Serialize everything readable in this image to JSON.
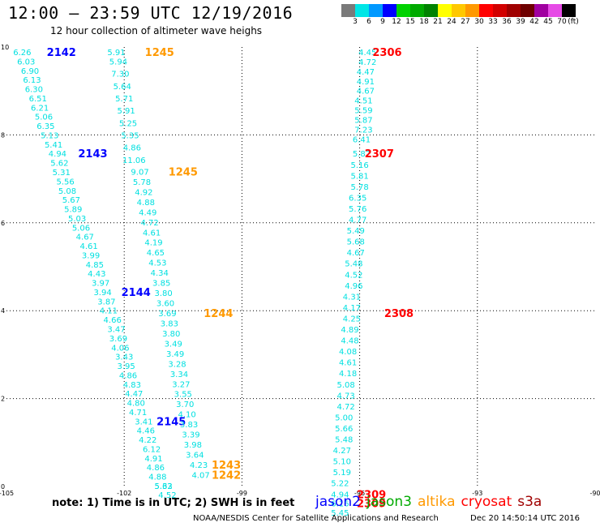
{
  "header": {
    "title": "12:00 – 23:59 UTC 12/19/2016",
    "subtitle": "12 hour collection of altimeter wave heighs"
  },
  "colorbar": {
    "unit_label": "(ft)",
    "colors": [
      "#7a7a7a",
      "#00e6e6",
      "#0099ff",
      "#0000ff",
      "#00d200",
      "#00aa00",
      "#008200",
      "#ffff00",
      "#ffc800",
      "#ff9900",
      "#ff0000",
      "#d20000",
      "#a00000",
      "#6e0000",
      "#a000a0",
      "#e64be6",
      "#000000"
    ],
    "labels": [
      "3",
      "6",
      "9",
      "12",
      "15",
      "18",
      "21",
      "24",
      "27",
      "30",
      "33",
      "36",
      "39",
      "42",
      "45",
      "70"
    ]
  },
  "chart_data": {
    "type": "scatter",
    "title": "12 hour collection of altimeter wave heighs",
    "xlim": [
      -105,
      -90
    ],
    "ylim": [
      0,
      10
    ],
    "x_ticks": [
      "-105",
      "-102",
      "-99",
      "-96",
      "-93",
      "-90"
    ],
    "y_ticks": [
      "0",
      "2",
      "4",
      "6",
      "8",
      "10"
    ],
    "grid": true,
    "colors": {
      "jason2": "#0000ff",
      "jason3": "#00aa00",
      "altika": "#ff9900",
      "cryosat": "#ff0000",
      "s3a": "#a00000",
      "swh": "#00e0e0"
    },
    "passes": [
      {
        "mission": "jason2",
        "label": "2142",
        "label_lon": -103.6,
        "label_lat": 9.87,
        "points": [
          [
            "6.26",
            -104.6,
            9.87
          ],
          [
            "6.03",
            -104.5,
            9.66
          ],
          [
            "6.90",
            -104.4,
            9.45
          ],
          [
            "6.13",
            -104.35,
            9.24
          ],
          [
            "6.30",
            -104.3,
            9.03
          ],
          [
            "6.51",
            -104.2,
            8.82
          ],
          [
            "6.21",
            -104.15,
            8.61
          ],
          [
            "5.06",
            -104.05,
            8.4
          ],
          [
            "6.35",
            -104.0,
            8.19
          ],
          [
            "5.13",
            -103.9,
            7.98
          ],
          [
            "5.41",
            -103.8,
            7.77
          ]
        ]
      },
      {
        "mission": "jason2",
        "label": "2143",
        "label_lon": -102.8,
        "label_lat": 7.56,
        "points": [
          [
            "4.94",
            -103.7,
            7.56
          ],
          [
            "5.62",
            -103.65,
            7.35
          ],
          [
            "5.31",
            -103.6,
            7.14
          ],
          [
            "5.56",
            -103.5,
            6.93
          ],
          [
            "5.08",
            -103.45,
            6.72
          ],
          [
            "5.67",
            -103.35,
            6.51
          ],
          [
            "5.89",
            -103.3,
            6.3
          ],
          [
            "5.03",
            -103.2,
            6.09
          ],
          [
            "5.06",
            -103.1,
            5.88
          ],
          [
            "4.67",
            -103.0,
            5.67
          ],
          [
            "4.61",
            -102.9,
            5.46
          ],
          [
            "3.99",
            -102.85,
            5.25
          ],
          [
            "4.85",
            -102.75,
            5.04
          ],
          [
            "4.43",
            -102.7,
            4.83
          ],
          [
            "3.97",
            -102.6,
            4.62
          ],
          [
            "3.94",
            -102.55,
            4.41
          ],
          [
            "3.87",
            -102.45,
            4.2
          ],
          [
            "4.11",
            -102.4,
            3.99
          ],
          [
            "4.66",
            -102.3,
            3.78
          ],
          [
            "3.47",
            -102.2,
            3.57
          ],
          [
            "3.69",
            -102.15,
            3.36
          ],
          [
            "4.06",
            -102.1,
            3.15
          ],
          [
            "3.43",
            -102.0,
            2.94
          ],
          [
            "3.95",
            -101.95,
            2.73
          ],
          [
            "4.86",
            -101.9,
            2.52
          ],
          [
            "4.83",
            -101.8,
            2.31
          ],
          [
            "4.47",
            -101.75,
            2.1
          ],
          [
            "4.80",
            -101.7,
            1.89
          ],
          [
            "4.71",
            -101.65,
            1.68
          ]
        ]
      },
      {
        "mission": "jason2",
        "label": "2144",
        "label_lon": -101.7,
        "label_lat": 4.41,
        "points": []
      },
      {
        "mission": "jason2",
        "label": "2145",
        "label_lon": -100.8,
        "label_lat": 1.47,
        "points": [
          [
            "3.41",
            -101.5,
            1.47
          ],
          [
            "4.46",
            -101.45,
            1.26
          ],
          [
            "4.22",
            -101.4,
            1.05
          ],
          [
            "6.12",
            -101.3,
            0.84
          ],
          [
            "4.91",
            -101.25,
            0.63
          ],
          [
            "4.86",
            -101.2,
            0.42
          ],
          [
            "4.88",
            -101.15,
            0.21
          ],
          [
            "5.62",
            -101.0,
            0.0
          ]
        ]
      },
      {
        "mission": "altika",
        "label": "1245",
        "label_lon": -101.1,
        "label_lat": 9.87,
        "points": [
          [
            "5.91",
            -102.2,
            9.87
          ],
          [
            "5.94",
            -102.15,
            9.66
          ],
          [
            "7.30",
            -102.1,
            9.38
          ],
          [
            "5.64",
            -102.05,
            9.1
          ],
          [
            "5.71",
            -102.0,
            8.82
          ],
          [
            "5.91",
            -101.95,
            8.54
          ],
          [
            "5.25",
            -101.9,
            8.26
          ],
          [
            "5.35",
            -101.85,
            7.98
          ],
          [
            "4.86",
            -101.8,
            7.7
          ],
          [
            "11.06",
            -101.75,
            7.42
          ]
        ]
      },
      {
        "mission": "altika",
        "label": "1245",
        "label_lon": -100.5,
        "label_lat": 7.15,
        "points": [
          [
            "9.07",
            -101.6,
            7.15
          ],
          [
            "5.78",
            -101.55,
            6.92
          ],
          [
            "4.92",
            -101.5,
            6.69
          ],
          [
            "4.88",
            -101.45,
            6.46
          ],
          [
            "4.49",
            -101.4,
            6.23
          ],
          [
            "4.72",
            -101.35,
            6.0
          ],
          [
            "4.61",
            -101.3,
            5.77
          ],
          [
            "4.19",
            -101.25,
            5.54
          ],
          [
            "4.65",
            -101.2,
            5.31
          ],
          [
            "4.53",
            -101.15,
            5.08
          ],
          [
            "4.34",
            -101.1,
            4.85
          ],
          [
            "3.85",
            -101.05,
            4.62
          ],
          [
            "3.80",
            -101.0,
            4.39
          ],
          [
            "3.60",
            -100.95,
            4.16
          ],
          [
            "3.69",
            -100.9,
            3.93
          ]
        ]
      },
      {
        "mission": "altika",
        "label": "1244",
        "label_lon": -99.6,
        "label_lat": 3.93,
        "points": [
          [
            "3.83",
            -100.85,
            3.7
          ],
          [
            "3.80",
            -100.8,
            3.47
          ],
          [
            "3.49",
            -100.75,
            3.24
          ],
          [
            "3.49",
            -100.7,
            3.01
          ],
          [
            "3.28",
            -100.65,
            2.78
          ],
          [
            "3.34",
            -100.6,
            2.55
          ],
          [
            "3.27",
            -100.55,
            2.32
          ],
          [
            "3.55",
            -100.5,
            2.09
          ],
          [
            "3.70",
            -100.45,
            1.86
          ],
          [
            "4.10",
            -100.4,
            1.63
          ],
          [
            "3.83",
            -100.35,
            1.4
          ],
          [
            "3.39",
            -100.3,
            1.17
          ],
          [
            "3.98",
            -100.25,
            0.94
          ],
          [
            "3.64",
            -100.2,
            0.71
          ],
          [
            "4.23",
            -100.1,
            0.48
          ],
          [
            "4.07",
            -100.05,
            0.25
          ]
        ]
      },
      {
        "mission": "altika",
        "label": "1243",
        "label_lon": -99.4,
        "label_lat": 0.48,
        "points": []
      },
      {
        "mission": "altika",
        "label": "1242",
        "label_lon": -99.4,
        "label_lat": 0.25,
        "points": [
          [
            "5.33",
            -101.0,
            0.0
          ],
          [
            "4.52",
            -100.9,
            -0.2
          ]
        ]
      },
      {
        "mission": "cryosat",
        "label": "2306",
        "label_lon": -95.3,
        "label_lat": 9.87,
        "points": [
          [
            "4.45",
            -95.8,
            9.87
          ],
          [
            "4.72",
            -95.8,
            9.65
          ],
          [
            "4.47",
            -95.85,
            9.43
          ],
          [
            "4.91",
            -95.85,
            9.21
          ],
          [
            "4.67",
            -95.85,
            8.99
          ],
          [
            "4.51",
            -95.9,
            8.77
          ],
          [
            "5.59",
            -95.9,
            8.55
          ],
          [
            "5.87",
            -95.9,
            8.33
          ],
          [
            "7.23",
            -95.9,
            8.11
          ],
          [
            "6.41",
            -95.95,
            7.89
          ]
        ]
      },
      {
        "mission": "cryosat",
        "label": "2307",
        "label_lon": -95.5,
        "label_lat": 7.56,
        "points": [
          [
            "5.87",
            -95.95,
            7.56
          ],
          [
            "5.16",
            -96.0,
            7.31
          ],
          [
            "5.81",
            -96.0,
            7.06
          ],
          [
            "5.78",
            -96.0,
            6.81
          ],
          [
            "6.35",
            -96.05,
            6.56
          ],
          [
            "5.76",
            -96.05,
            6.31
          ],
          [
            "4.77",
            -96.05,
            6.06
          ],
          [
            "5.49",
            -96.1,
            5.81
          ],
          [
            "5.68",
            -96.1,
            5.56
          ],
          [
            "4.67",
            -96.1,
            5.31
          ],
          [
            "5.48",
            -96.15,
            5.06
          ],
          [
            "4.52",
            -96.15,
            4.81
          ],
          [
            "4.96",
            -96.15,
            4.56
          ],
          [
            "4.31",
            -96.2,
            4.31
          ],
          [
            "4.17",
            -96.2,
            4.06
          ],
          [
            "4.25",
            -96.2,
            3.81
          ]
        ]
      },
      {
        "mission": "cryosat",
        "label": "2308",
        "label_lon": -95.0,
        "label_lat": 3.93,
        "points": [
          [
            "4.89",
            -96.25,
            3.56
          ],
          [
            "4.48",
            -96.25,
            3.31
          ],
          [
            "4.08",
            -96.3,
            3.06
          ],
          [
            "4.61",
            -96.3,
            2.81
          ],
          [
            "4.18",
            -96.3,
            2.56
          ],
          [
            "5.08",
            -96.35,
            2.31
          ],
          [
            "4.73",
            -96.35,
            2.06
          ],
          [
            "4.72",
            -96.35,
            1.81
          ],
          [
            "5.00",
            -96.4,
            1.56
          ],
          [
            "5.66",
            -96.4,
            1.31
          ],
          [
            "5.48",
            -96.4,
            1.06
          ],
          [
            "4.27",
            -96.45,
            0.81
          ],
          [
            "5.10",
            -96.45,
            0.56
          ],
          [
            "5.19",
            -96.45,
            0.31
          ],
          [
            "5.22",
            -96.5,
            0.06
          ],
          [
            "4.94",
            -96.5,
            -0.19
          ],
          [
            "6.16",
            -96.5,
            -0.4
          ]
        ]
      },
      {
        "mission": "cryosat",
        "label": "2309",
        "label_lon": -95.7,
        "label_lat": -0.19,
        "points": []
      },
      {
        "mission": "cryosat",
        "label": "2309",
        "label_lon": -95.7,
        "label_lat": -0.4,
        "points": [
          [
            "5.45",
            -96.5,
            -0.61
          ]
        ]
      }
    ]
  },
  "footer": {
    "note": "note:  1) Time is in UTC;  2) SWH is in feet",
    "legend": [
      {
        "name": "jason2",
        "color": "#0000ff"
      },
      {
        "name": "jason3",
        "color": "#00aa00"
      },
      {
        "name": "altika",
        "color": "#ff9900"
      },
      {
        "name": "cryosat",
        "color": "#ff0000"
      },
      {
        "name": "s3a",
        "color": "#a00000"
      }
    ],
    "credit": "NOAA/NESDIS Center for Satellite Applications and Research",
    "timestamp": "Dec 20 14:50:14 UTC 2016"
  }
}
